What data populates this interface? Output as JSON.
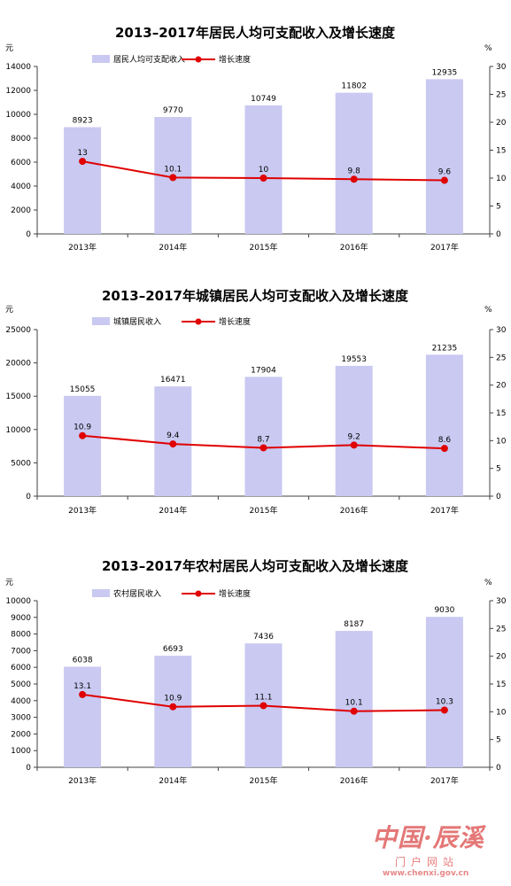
{
  "colors": {
    "bar": "#c9c9f2",
    "line": "#e00000",
    "axis": "#404040",
    "text": "#000000",
    "watermark": "#d94040"
  },
  "chart_data": [
    {
      "type": "bar",
      "title": "2013–2017年居民人均可支配收入及增长速度",
      "left_unit": "元",
      "right_unit": "%",
      "categories": [
        "2013年",
        "2014年",
        "2015年",
        "2016年",
        "2017年"
      ],
      "series": [
        {
          "name": "居民人均可支配收入",
          "type": "bar",
          "axis": "left",
          "values": [
            8923,
            9770,
            10749,
            11802,
            12935
          ]
        },
        {
          "name": "增长速度",
          "type": "line",
          "axis": "right",
          "values": [
            13,
            10.1,
            10,
            9.8,
            9.6
          ]
        }
      ],
      "ylim_left": [
        0,
        14000
      ],
      "yticks_left": [
        0,
        2000,
        4000,
        6000,
        8000,
        10000,
        12000,
        14000
      ],
      "ylim_right": [
        0,
        30
      ],
      "yticks_right": [
        0,
        5,
        10,
        15,
        20,
        25,
        30
      ],
      "legend": "top-center",
      "grid": false
    },
    {
      "type": "bar",
      "title": "2013–2017年城镇居民人均可支配收入及增长速度",
      "left_unit": "元",
      "right_unit": "%",
      "categories": [
        "2013年",
        "2014年",
        "2015年",
        "2016年",
        "2017年"
      ],
      "series": [
        {
          "name": "城镇居民收入",
          "type": "bar",
          "axis": "left",
          "values": [
            15055,
            16471,
            17904,
            19553,
            21235
          ]
        },
        {
          "name": "增长速度",
          "type": "line",
          "axis": "right",
          "values": [
            10.9,
            9.4,
            8.7,
            9.2,
            8.6
          ]
        }
      ],
      "ylim_left": [
        0,
        25000
      ],
      "yticks_left": [
        0,
        5000,
        10000,
        15000,
        20000,
        25000
      ],
      "ylim_right": [
        0,
        30
      ],
      "yticks_right": [
        0,
        5,
        10,
        15,
        20,
        25,
        30
      ],
      "legend": "top-center",
      "grid": false
    },
    {
      "type": "bar",
      "title": "2013–2017年农村居民人均可支配收入及增长速度",
      "left_unit": "元",
      "right_unit": "%",
      "categories": [
        "2013年",
        "2014年",
        "2015年",
        "2016年",
        "2017年"
      ],
      "series": [
        {
          "name": "农村居民收入",
          "type": "bar",
          "axis": "left",
          "values": [
            6038,
            6693,
            7436,
            8187,
            9030
          ]
        },
        {
          "name": "增长速度",
          "type": "line",
          "axis": "right",
          "values": [
            13.1,
            10.9,
            11.1,
            10.1,
            10.3
          ]
        }
      ],
      "ylim_left": [
        0,
        10000
      ],
      "yticks_left": [
        0,
        1000,
        2000,
        3000,
        4000,
        5000,
        6000,
        7000,
        8000,
        9000,
        10000
      ],
      "ylim_right": [
        0,
        30
      ],
      "yticks_right": [
        0,
        5,
        10,
        15,
        20,
        25,
        30
      ],
      "legend": "top-center",
      "grid": false
    }
  ],
  "watermark": {
    "brand": "中国·辰溪",
    "tagline": "门户网站",
    "url": "www.chenxi.gov.cn"
  }
}
